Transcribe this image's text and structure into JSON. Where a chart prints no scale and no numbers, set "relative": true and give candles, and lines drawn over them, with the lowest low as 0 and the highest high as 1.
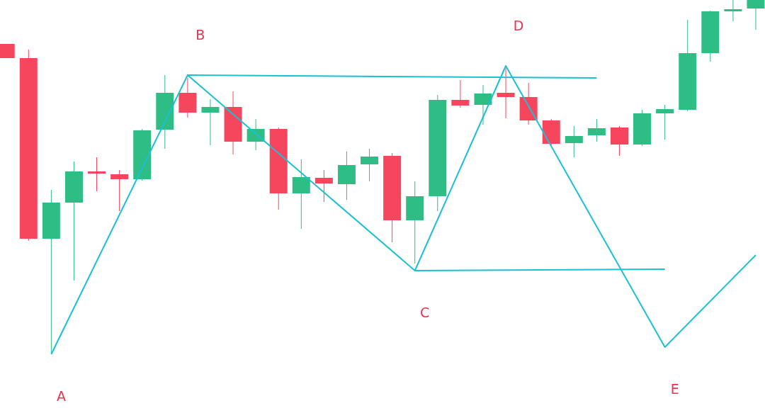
{
  "chart_data": {
    "type": "candlestick",
    "relative": true,
    "grid": false,
    "categories": [
      null,
      null,
      null,
      null,
      null,
      null,
      null,
      null,
      null,
      null,
      null,
      null,
      null,
      null,
      null,
      null,
      null,
      null,
      null,
      null,
      null,
      null,
      null,
      null,
      null,
      null,
      null,
      null,
      null,
      null,
      null,
      null,
      null,
      null
    ],
    "ohlc": [
      [
        0.876,
        0.876,
        0.836,
        0.836
      ],
      [
        0.836,
        0.86,
        0.32,
        0.326
      ],
      [
        0.326,
        0.464,
        0,
        0.428
      ],
      [
        0.428,
        0.544,
        0.208,
        0.516
      ],
      [
        0.516,
        0.556,
        0.46,
        0.51
      ],
      [
        0.508,
        0.52,
        0.404,
        0.494
      ],
      [
        0.494,
        0.636,
        0.49,
        0.632
      ],
      [
        0.634,
        0.788,
        0.58,
        0.738
      ],
      [
        0.738,
        0.78,
        0.668,
        0.682
      ],
      [
        0.682,
        0.72,
        0.59,
        0.698
      ],
      [
        0.698,
        0.742,
        0.564,
        0.6
      ],
      [
        0.6,
        0.664,
        0.576,
        0.636
      ],
      [
        0.636,
        0.64,
        0.408,
        0.454
      ],
      [
        0.454,
        0.55,
        0.354,
        0.5
      ],
      [
        0.498,
        0.52,
        0.43,
        0.482
      ],
      [
        0.48,
        0.572,
        0.436,
        0.534
      ],
      [
        0.536,
        0.58,
        0.488,
        0.558
      ],
      [
        0.56,
        0.568,
        0.316,
        0.378
      ],
      [
        0.378,
        0.488,
        0.256,
        0.446
      ],
      [
        0.446,
        0.732,
        0.404,
        0.718
      ],
      [
        0.718,
        0.774,
        0.696,
        0.702
      ],
      [
        0.704,
        0.76,
        0.648,
        0.736
      ],
      [
        0.738,
        0.808,
        0.666,
        0.726
      ],
      [
        0.726,
        0.766,
        0.648,
        0.66
      ],
      [
        0.66,
        0.664,
        0.59,
        0.594
      ],
      [
        0.596,
        0.644,
        0.556,
        0.616
      ],
      [
        0.618,
        0.664,
        0.6,
        0.638
      ],
      [
        0.64,
        0.644,
        0.56,
        0.592
      ],
      [
        0.592,
        0.69,
        0.588,
        0.68
      ],
      [
        0.68,
        0.704,
        0.606,
        0.692
      ],
      [
        0.69,
        0.944,
        0.686,
        0.85
      ],
      [
        0.85,
        0.97,
        0.826,
        0.968
      ],
      [
        0.968,
        1,
        0.94,
        0.974
      ],
      [
        0.976,
        1,
        0.916,
        1
      ]
    ],
    "colors": [
      "#f6465d",
      "#f6465d",
      "#2ebd85",
      "#2ebd85",
      "#f6465d",
      "#f6465d",
      "#2ebd85",
      "#2ebd85",
      "#f6465d",
      "#2ebd85",
      "#f6465d",
      "#2ebd85",
      "#f6465d",
      "#2ebd85",
      "#f6465d",
      "#2ebd85",
      "#2ebd85",
      "#f6465d",
      "#2ebd85",
      "#2ebd85",
      "#f6465d",
      "#2ebd85",
      "#f6465d",
      "#f6465d",
      "#f6465d",
      "#2ebd85",
      "#2ebd85",
      "#f6465d",
      "#2ebd85",
      "#2ebd85",
      "#2ebd85",
      "#2ebd85",
      "#2ebd85",
      "#2ebd85"
    ],
    "series": [
      {
        "type": "line",
        "color": "#1cc0d3",
        "values": [
          null,
          null,
          0,
          null,
          null,
          null,
          null,
          null,
          0.788,
          null,
          null,
          null,
          null,
          null,
          null,
          null,
          null,
          null,
          0.236,
          null,
          null,
          null,
          0.814,
          null,
          null,
          null,
          null,
          null,
          null,
          0.02,
          null,
          null,
          null,
          0.28
        ]
      },
      {
        "type": "line",
        "color": "#1cc0d3",
        "values": [
          null,
          null,
          null,
          null,
          null,
          null,
          null,
          null,
          0.788,
          null,
          null,
          null,
          null,
          null,
          null,
          null,
          null,
          null,
          null,
          null,
          null,
          null,
          null,
          null,
          null,
          null,
          0.78,
          null,
          null,
          null,
          null,
          null,
          null,
          null
        ]
      },
      {
        "type": "line",
        "color": "#1cc0d3",
        "values": [
          null,
          null,
          null,
          null,
          null,
          null,
          null,
          null,
          null,
          null,
          null,
          null,
          null,
          null,
          null,
          null,
          null,
          null,
          0.236,
          null,
          null,
          null,
          null,
          null,
          null,
          null,
          null,
          null,
          null,
          0.24,
          null,
          null,
          null,
          null
        ]
      }
    ],
    "annotations": [
      "A",
      "B",
      "C",
      "D",
      "E"
    ]
  }
}
